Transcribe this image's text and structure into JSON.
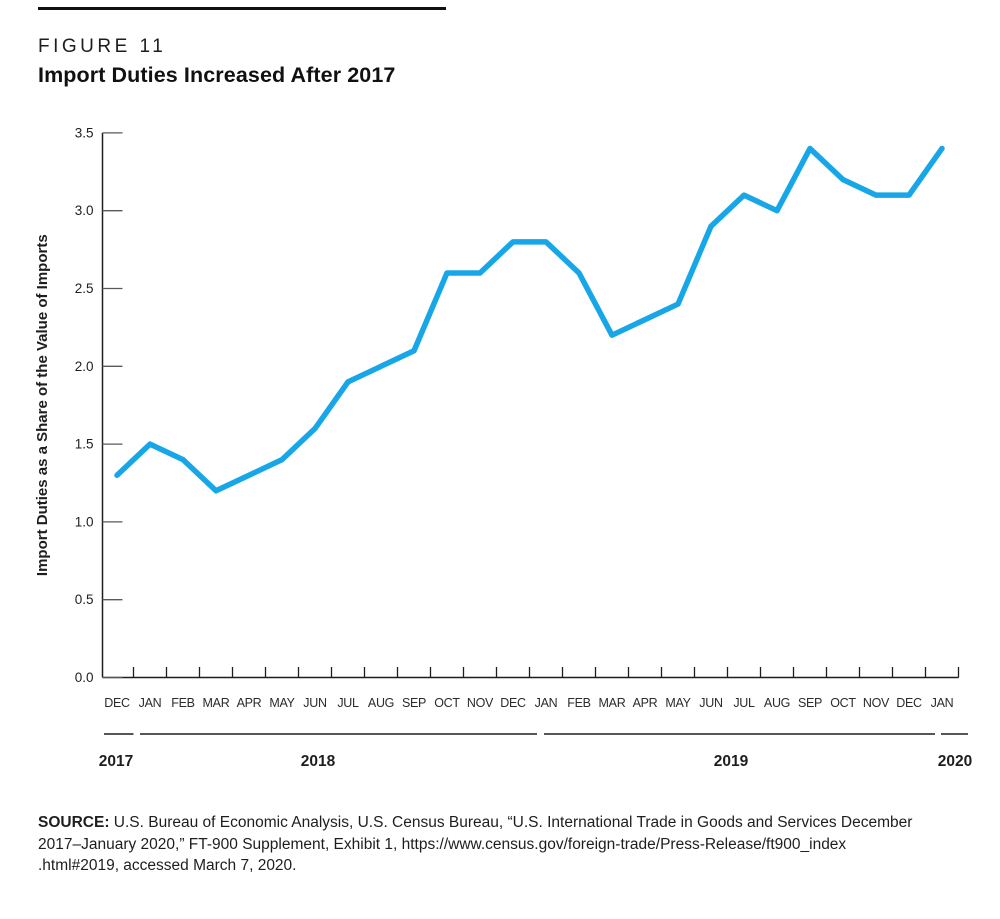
{
  "figure": {
    "label": "FIGURE 11",
    "title": "Import Duties Increased After 2017"
  },
  "source": {
    "label": "SOURCE:",
    "lines": [
      "U.S. Bureau of Economic Analysis, U.S. Census Bureau, “U.S. International Trade in Goods and Services December",
      "2017–January 2020,” FT-900 Supplement, Exhibit 1, https://www.census.gov/foreign-trade/Press-Release/ft900_index",
      ".html#2019, accessed March 7, 2020."
    ]
  },
  "chart_data": {
    "type": "line",
    "title": "Import Duties Increased After 2017",
    "figure_label": "FIGURE 11",
    "xlabel": "",
    "ylabel": "Import Duties as a Share of the Value of Imports",
    "x": [
      "DEC",
      "JAN",
      "FEB",
      "MAR",
      "APR",
      "MAY",
      "JUN",
      "JUL",
      "AUG",
      "SEP",
      "OCT",
      "NOV",
      "DEC",
      "JAN",
      "FEB",
      "MAR",
      "APR",
      "MAY",
      "JUN",
      "JUL",
      "AUG",
      "SEP",
      "OCT",
      "NOV",
      "DEC",
      "JAN"
    ],
    "x_years": [
      {
        "label": "2017",
        "from": 0,
        "to": 0
      },
      {
        "label": "2018",
        "from": 1,
        "to": 12
      },
      {
        "label": "2019",
        "from": 13,
        "to": 24
      },
      {
        "label": "2020",
        "from": 25,
        "to": 25
      }
    ],
    "values": [
      1.3,
      1.5,
      1.4,
      1.2,
      1.3,
      1.4,
      1.6,
      1.9,
      2.0,
      2.1,
      2.6,
      2.6,
      2.8,
      2.8,
      2.6,
      2.2,
      2.3,
      2.4,
      2.9,
      3.1,
      3.0,
      3.4,
      3.2,
      3.1,
      3.1,
      3.4
    ],
    "yticks": [
      "0.0",
      "0.5",
      "1.0",
      "1.5",
      "2.0",
      "2.5",
      "3.0",
      "3.5"
    ],
    "ylim": [
      0,
      3.5
    ],
    "grid": false,
    "legend": null,
    "line_color": "#17A7E8",
    "axis_color": "#1e1e1e",
    "tick_color": "#595959"
  }
}
